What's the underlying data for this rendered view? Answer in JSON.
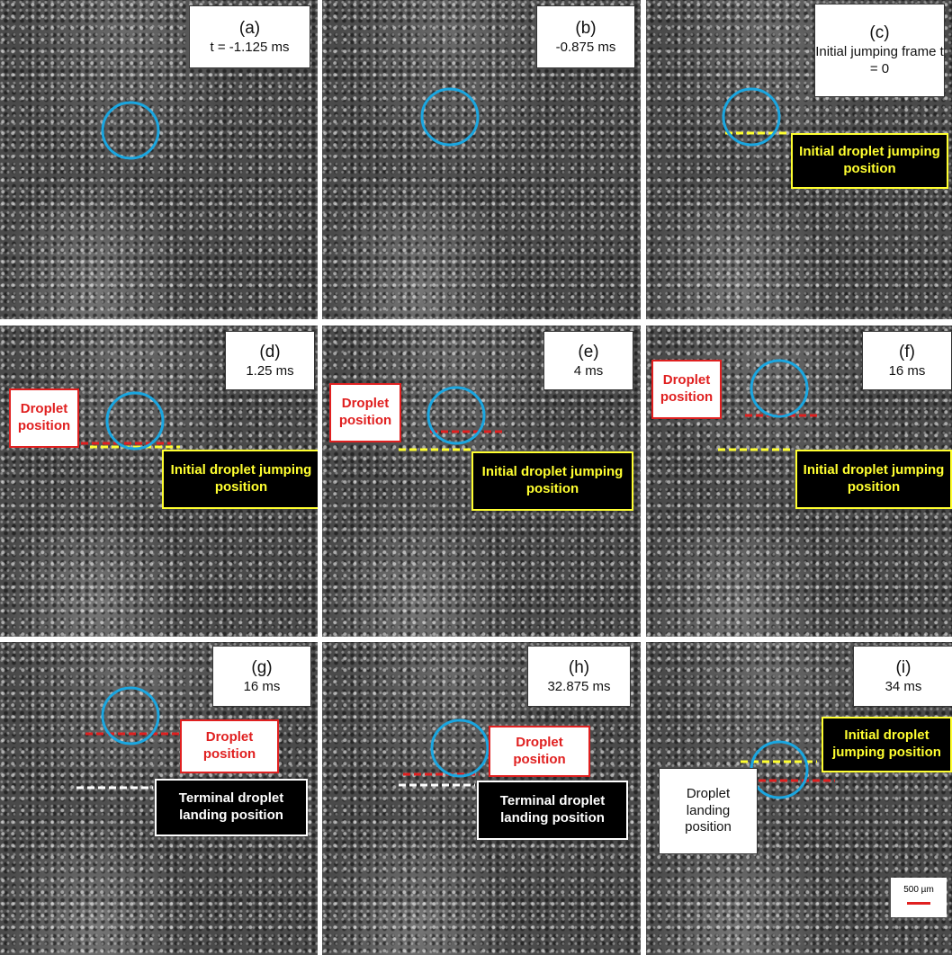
{
  "panels": [
    {
      "label": "(a)",
      "caption": "t = -1.125 ms",
      "annotations": []
    },
    {
      "label": "(b)",
      "caption": "-0.875 ms",
      "annotations": []
    },
    {
      "label": "(c)",
      "caption": "Initial jumping frame t = 0",
      "annotations": [
        "Initial droplet jumping position"
      ]
    },
    {
      "label": "(d)",
      "caption": "1.25 ms",
      "annotations": [
        "Droplet position",
        "Initial droplet jumping position"
      ]
    },
    {
      "label": "(e)",
      "caption": "4 ms",
      "annotations": [
        "Droplet position",
        "Initial droplet jumping position"
      ]
    },
    {
      "label": "(f)",
      "caption": "16 ms",
      "annotations": [
        "Droplet position",
        "Initial droplet jumping position"
      ]
    },
    {
      "label": "(g)",
      "caption": "16 ms",
      "annotations": [
        "Droplet position",
        "Terminal droplet landing position"
      ]
    },
    {
      "label": "(h)",
      "caption": "32.875 ms",
      "annotations": [
        "Droplet position",
        "Terminal droplet landing position"
      ]
    },
    {
      "label": "(i)",
      "caption": "34 ms",
      "annotations": [
        "Initial droplet jumping position",
        "Droplet landing position"
      ]
    }
  ],
  "scale_bar": "500 µm"
}
